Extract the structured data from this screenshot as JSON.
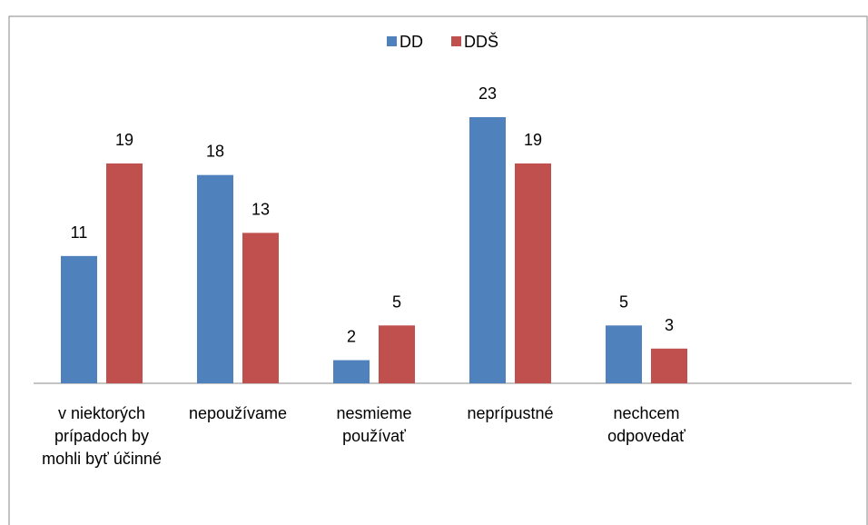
{
  "chart_data": {
    "type": "bar",
    "categories": [
      "v niektorých prípadoch by mohli byť účinné",
      "nepoužívame",
      "nesmieme používať",
      "neprípustné",
      "nechcem odpovedať"
    ],
    "series": [
      {
        "name": "DD",
        "color": "#4f81bd",
        "values": [
          11,
          18,
          2,
          23,
          5
        ]
      },
      {
        "name": "DDŠ",
        "color": "#c0504d",
        "values": [
          19,
          13,
          5,
          19,
          3
        ]
      }
    ]
  }
}
